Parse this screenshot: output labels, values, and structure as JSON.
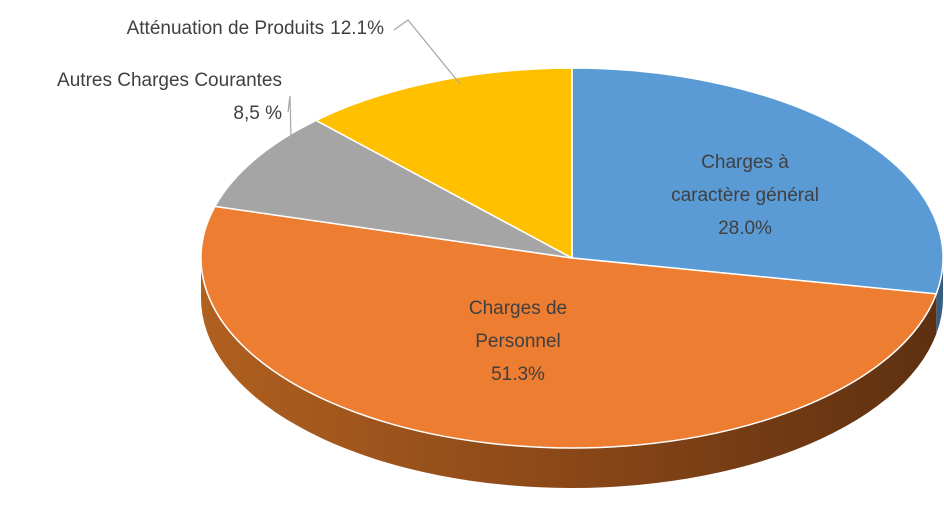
{
  "chart_data": {
    "type": "pie",
    "style": "3d",
    "categories": [
      "Charges à caractère général",
      "Charges de Personnel",
      "Autres Charges Courantes",
      "Atténuation de Produits"
    ],
    "values": [
      28.0,
      51.3,
      8.5,
      12.1
    ],
    "value_labels": [
      "28.0%",
      "51.3%",
      "8,5 %",
      "12.1%"
    ],
    "colors": [
      "#5b9bd5",
      "#ed7d31",
      "#a5a5a5",
      "#ffc000"
    ]
  }
}
